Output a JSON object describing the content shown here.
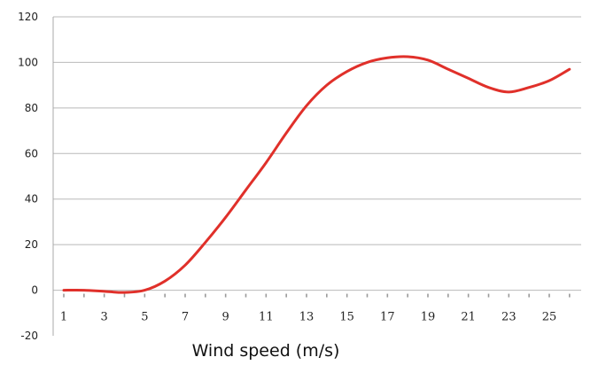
{
  "chart_data": {
    "type": "line",
    "xlabel": "Wind speed (m/s)",
    "ylabel": "",
    "title": "",
    "ylim": [
      -20,
      120
    ],
    "xlim": [
      1,
      26
    ],
    "y_ticks": [
      -20,
      0,
      20,
      40,
      60,
      80,
      100,
      120
    ],
    "x_tick_labels": [
      "1",
      "3",
      "5",
      "7",
      "9",
      "11",
      "13",
      "15",
      "17",
      "19",
      "21",
      "23",
      "25"
    ],
    "x_tick_values": [
      1,
      3,
      5,
      7,
      9,
      11,
      13,
      15,
      17,
      19,
      21,
      23,
      25
    ],
    "minor_tick_values": [
      2,
      4,
      6,
      8,
      10,
      12,
      14,
      16,
      18,
      20,
      22,
      24,
      26
    ],
    "grid": true,
    "legend": "none",
    "series_color": "#e0302a",
    "series": [
      {
        "x": [
          1,
          2,
          3,
          4,
          5,
          6,
          7,
          8,
          9,
          10,
          11,
          12,
          13,
          14,
          15,
          16,
          17,
          18,
          19,
          20,
          21,
          22,
          23,
          24,
          25,
          26
        ],
        "values": [
          0,
          0,
          -0.5,
          -1,
          0,
          4,
          11,
          21,
          32,
          44,
          56,
          69,
          81,
          90,
          96,
          100,
          102,
          102.5,
          101,
          97,
          93,
          89,
          87,
          89,
          92,
          97
        ]
      }
    ]
  }
}
